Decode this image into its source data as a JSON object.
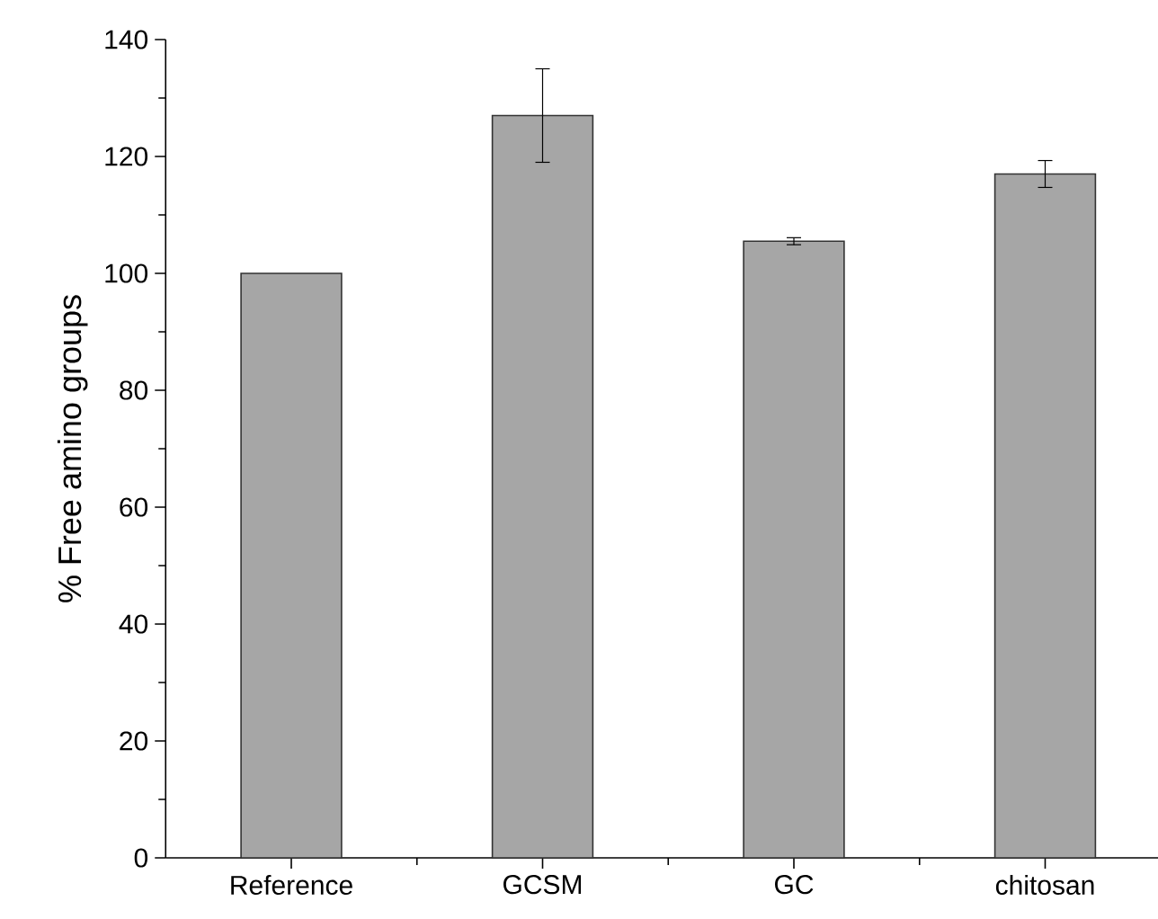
{
  "chart_data": {
    "type": "bar",
    "ylabel": "% Free amino groups",
    "categories": [
      "Reference",
      "GCSM",
      "GC",
      "chitosan"
    ],
    "values": [
      100,
      127,
      105.5,
      117
    ],
    "errors": [
      null,
      8,
      0.6,
      2.3
    ],
    "color": "#a6a6a6",
    "ylim": [
      0,
      140
    ],
    "yticks": [
      0,
      20,
      40,
      60,
      80,
      100,
      120,
      140
    ]
  }
}
